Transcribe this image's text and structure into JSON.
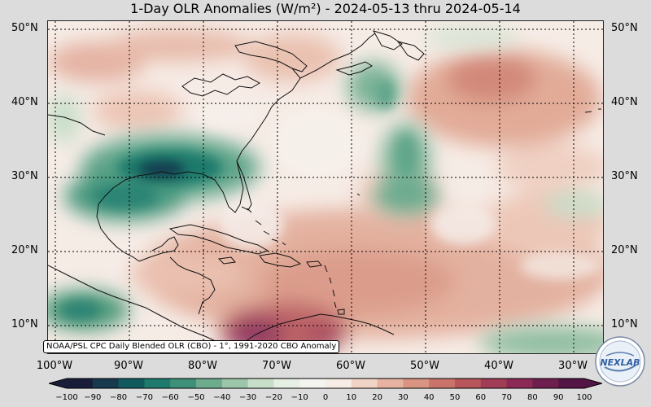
{
  "title": "1-Day OLR Anomalies (W/m²) - 2024-05-13 thru 2024-05-14",
  "source_label": "NOAA/PSL CPC Daily Blended OLR (CBO) - 1°, 1991-2020 CBO Anomaly",
  "logo_text": "NEXLAB",
  "latitude_labels": [
    "50°N",
    "40°N",
    "30°N",
    "20°N",
    "10°N"
  ],
  "longitude_labels": [
    "100°W",
    "90°W",
    "80°W",
    "70°W",
    "60°W",
    "50°W",
    "40°W",
    "30°W"
  ],
  "colorbar": {
    "ticks": [
      "−100",
      "−90",
      "−80",
      "−70",
      "−60",
      "−50",
      "−40",
      "−30",
      "−20",
      "−10",
      "0",
      "10",
      "20",
      "30",
      "40",
      "50",
      "60",
      "70",
      "80",
      "90",
      "100"
    ],
    "colors": [
      "#1a1d3a",
      "#173a4f",
      "#115a5e",
      "#1d7a6c",
      "#3e9078",
      "#6cab8e",
      "#9cc6a9",
      "#c7dec9",
      "#e6efe3",
      "#f4f4f0",
      "#f7ece6",
      "#f1d3c6",
      "#e6b3a3",
      "#d99482",
      "#c9736a",
      "#b7555a",
      "#a03c55",
      "#8a2a55",
      "#6f1f4f",
      "#521545"
    ]
  },
  "map_data": {
    "lon_range": [
      -101,
      -26
    ],
    "lat_range": [
      6,
      51
    ],
    "anomaly_features": [
      {
        "type": "negative",
        "region": "Gulf coast / southeastern US",
        "color": "#175f61"
      },
      {
        "type": "negative",
        "region": "western Atlantic near 40N 50W",
        "color": "#4f9a7a"
      },
      {
        "type": "negative",
        "region": "eastern Pacific near 10N 95W",
        "color": "#3e9078"
      },
      {
        "type": "negative",
        "region": "tropical Atlantic near 8N 35W",
        "color": "#6cab8e"
      },
      {
        "type": "positive",
        "region": "Caribbean / northern South America",
        "color": "#8a2a55"
      },
      {
        "type": "positive",
        "region": "central North Atlantic near 45N 40W",
        "color": "#d48a78"
      },
      {
        "type": "positive",
        "region": "tropical Atlantic near 15N 60W",
        "color": "#e0a48f"
      }
    ]
  }
}
